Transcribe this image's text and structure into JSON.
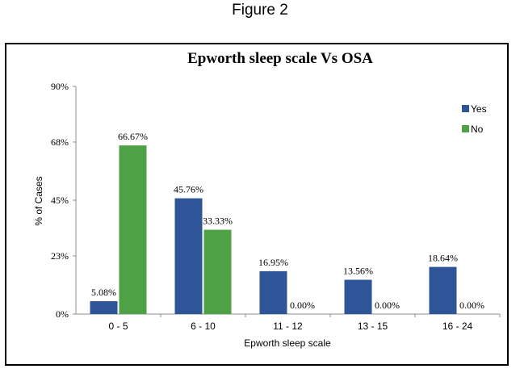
{
  "figure_label": "Figure 2",
  "chart_data": {
    "type": "bar",
    "title": "Epworth sleep scale Vs OSA",
    "xlabel": "Epworth sleep scale",
    "ylabel": "% of Cases",
    "categories": [
      "0 - 5",
      "6 - 10",
      "11 - 12",
      "13 - 15",
      "16 - 24"
    ],
    "ylim": [
      0,
      90
    ],
    "yticks": [
      0,
      23,
      45,
      68,
      90
    ],
    "ytick_labels": [
      "0%",
      "23%",
      "45%",
      "68%",
      "90%"
    ],
    "grid": false,
    "legend_position": "top-right",
    "series": [
      {
        "name": "Yes",
        "color": "#2e5597",
        "values": [
          5.08,
          45.76,
          16.95,
          13.56,
          18.64
        ],
        "labels": [
          "5.08%",
          "45.76%",
          "16.95%",
          "13.56%",
          "18.64%"
        ]
      },
      {
        "name": "No",
        "color": "#4ea145",
        "values": [
          66.67,
          33.33,
          0,
          0,
          0
        ],
        "labels": [
          "66.67%",
          "33.33%",
          "0.00%",
          "0.00%",
          "0.00%"
        ]
      }
    ]
  }
}
